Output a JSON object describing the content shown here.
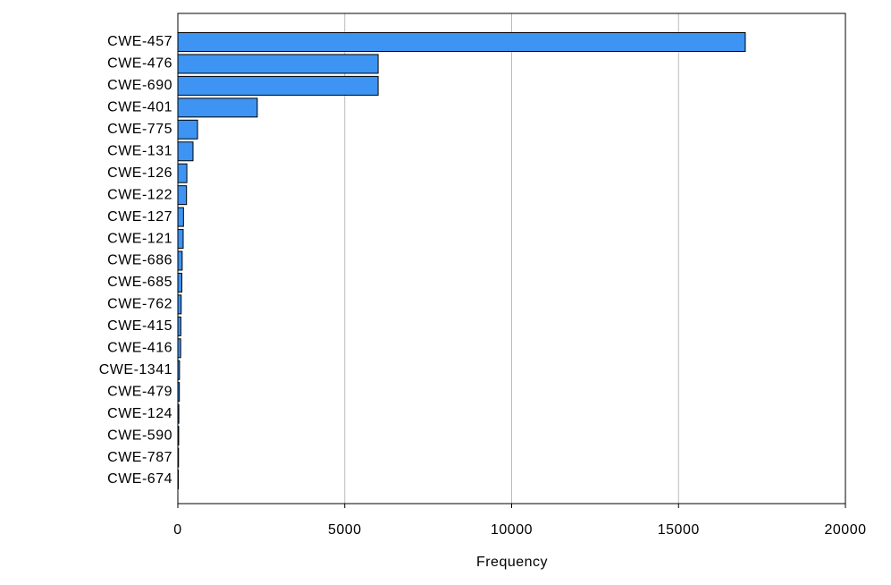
{
  "chart_data": {
    "type": "barh",
    "categories": [
      "CWE-457",
      "CWE-476",
      "CWE-690",
      "CWE-401",
      "CWE-775",
      "CWE-131",
      "CWE-126",
      "CWE-122",
      "CWE-127",
      "CWE-121",
      "CWE-686",
      "CWE-685",
      "CWE-762",
      "CWE-415",
      "CWE-416",
      "CWE-1341",
      "CWE-479",
      "CWE-124",
      "CWE-590",
      "CWE-787",
      "CWE-674"
    ],
    "values": [
      17000,
      6000,
      6000,
      2380,
      590,
      455,
      270,
      260,
      170,
      160,
      130,
      120,
      100,
      90,
      85,
      50,
      45,
      30,
      25,
      20,
      15
    ],
    "color": "#3d94f2",
    "xlabel": "Frequency",
    "xlim": [
      0,
      20000
    ],
    "xticks": [
      0,
      5000,
      10000,
      15000,
      20000
    ],
    "grid": true
  }
}
